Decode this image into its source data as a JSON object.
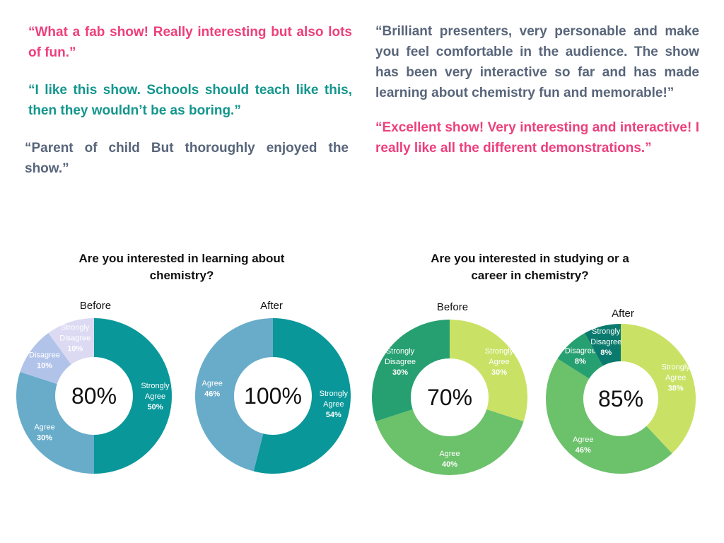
{
  "quotes": {
    "q1": "“What a fab show! Really interesting but also lots of fun.”",
    "q2": "“I like this show. Schools should teach like this, then they wouldn’t be as boring.”",
    "q3": "“Parent of child But thoroughly enjoyed the show.”",
    "q4": "“Brilliant presenters, very personable and make you feel comfortable in the audience. The show has been very interactive so far and has made learning about chemistry fun and memorable!”",
    "q5": "“Excellent show! Very interesting and interactive! I really like all the different demonstrations.”"
  },
  "colors": {
    "pink": "#ee3f7c",
    "teal": "#13968d",
    "gray": "#58657a"
  },
  "sections": {
    "learning": {
      "title": "Are you interested in learning about chemistry?"
    },
    "career": {
      "title": "Are you interested in studying or a career in chemistry?"
    }
  },
  "chart_data": [
    {
      "type": "pie",
      "label": "Before",
      "center": "80%",
      "slices": [
        {
          "label": "Strongly Agree",
          "value": 50,
          "pct": "50%",
          "color": "#0a979a",
          "text": "#ffffff"
        },
        {
          "label": "Agree",
          "value": 30,
          "pct": "30%",
          "color": "#68acca",
          "text": "#ffffff"
        },
        {
          "label": "Disagree",
          "value": 10,
          "pct": "10%",
          "color": "#b2c3ea",
          "text": "#ffffff"
        },
        {
          "label": "Strongly Disagree",
          "value": 10,
          "pct": "10%",
          "color": "#dcd9f2",
          "text": "#ffffff"
        }
      ]
    },
    {
      "type": "pie",
      "label": "After",
      "center": "100%",
      "slices": [
        {
          "label": "Strongly Agree",
          "value": 54,
          "pct": "54%",
          "color": "#0a979a",
          "text": "#ffffff"
        },
        {
          "label": "Agree",
          "value": 46,
          "pct": "46%",
          "color": "#68acca",
          "text": "#ffffff"
        }
      ]
    },
    {
      "type": "pie",
      "label": "Before",
      "center": "70%",
      "slices": [
        {
          "label": "Strongly Agree",
          "value": 30,
          "pct": "30%",
          "color": "#c9e265",
          "text": "#ffffff"
        },
        {
          "label": "Agree",
          "value": 40,
          "pct": "40%",
          "color": "#6cc16b",
          "text": "#ffffff"
        },
        {
          "label": "Strongly Disagree",
          "value": 30,
          "pct": "30%",
          "color": "#27a071",
          "text": "#ffffff"
        }
      ]
    },
    {
      "type": "pie",
      "label": "After",
      "center": "85%",
      "slices": [
        {
          "label": "Strongly Agree",
          "value": 38,
          "pct": "38%",
          "color": "#c9e265",
          "text": "#ffffff"
        },
        {
          "label": "Agree",
          "value": 46,
          "pct": "46%",
          "color": "#6cc16b",
          "text": "#ffffff"
        },
        {
          "label": "Disagree",
          "value": 8,
          "pct": "8%",
          "color": "#27a071",
          "text": "#ffffff"
        },
        {
          "label": "Strongly Disagree",
          "value": 8,
          "pct": "8%",
          "color": "#0b7a6e",
          "text": "#ffffff"
        }
      ]
    }
  ]
}
